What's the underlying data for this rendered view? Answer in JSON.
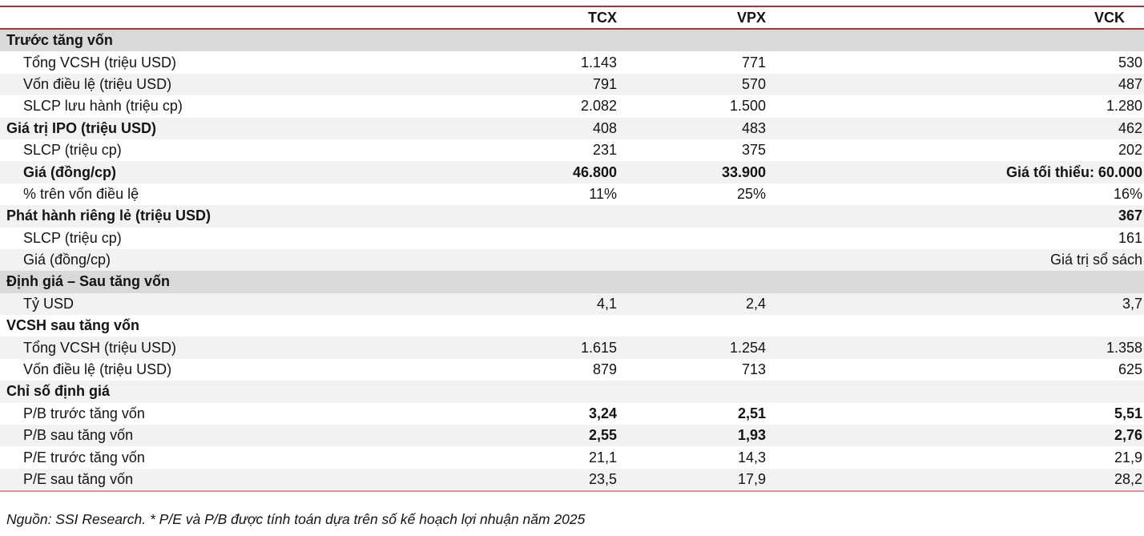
{
  "colors": {
    "rule_dark": "#9c3a38",
    "rule_light": "#d99694",
    "section_bg": "#d9d9d9",
    "stripe_bg": "#f2f2f2"
  },
  "table": {
    "columns": [
      "TCX",
      "VPX",
      "VCK"
    ],
    "rows": [
      {
        "label": "Trước tăng vốn",
        "bg": "section",
        "bold_label": true,
        "bold_values": false,
        "indent": false,
        "values": [
          "",
          "",
          ""
        ]
      },
      {
        "label": "Tổng VCSH (triệu USD)",
        "bg": "white",
        "bold_label": false,
        "bold_values": false,
        "indent": true,
        "values": [
          "1.143",
          "771",
          "530"
        ]
      },
      {
        "label": "Vốn điều lệ (triệu USD)",
        "bg": "stripe",
        "bold_label": false,
        "bold_values": false,
        "indent": true,
        "values": [
          "791",
          "570",
          "487"
        ]
      },
      {
        "label": "SLCP lưu hành (triệu cp)",
        "bg": "white",
        "bold_label": false,
        "bold_values": false,
        "indent": true,
        "values": [
          "2.082",
          "1.500",
          "1.280"
        ]
      },
      {
        "label": "Giá trị IPO (triệu USD)",
        "bg": "stripe",
        "bold_label": true,
        "bold_values": false,
        "indent": false,
        "values": [
          "408",
          "483",
          "462"
        ]
      },
      {
        "label": "SLCP (triệu cp)",
        "bg": "white",
        "bold_label": false,
        "bold_values": false,
        "indent": true,
        "values": [
          "231",
          "375",
          "202"
        ]
      },
      {
        "label": "Giá (đồng/cp)",
        "bg": "stripe",
        "bold_label": true,
        "bold_values": true,
        "indent": true,
        "values": [
          "46.800",
          "33.900",
          "Giá tối thiểu: 60.000"
        ]
      },
      {
        "label": "% trên vốn điều lệ",
        "bg": "white",
        "bold_label": false,
        "bold_values": false,
        "indent": true,
        "values": [
          "11%",
          "25%",
          "16%"
        ]
      },
      {
        "label": "Phát hành riêng lẻ (triệu USD)",
        "bg": "stripe",
        "bold_label": true,
        "bold_values": true,
        "indent": false,
        "values": [
          "",
          "",
          "367"
        ]
      },
      {
        "label": "SLCP (triệu cp)",
        "bg": "white",
        "bold_label": false,
        "bold_values": false,
        "indent": true,
        "values": [
          "",
          "",
          "161"
        ]
      },
      {
        "label": "Giá (đồng/cp)",
        "bg": "stripe",
        "bold_label": false,
        "bold_values": false,
        "indent": true,
        "values": [
          "",
          "",
          "Giá trị sổ sách"
        ]
      },
      {
        "label": "Định giá – Sau tăng vốn",
        "bg": "section",
        "bold_label": true,
        "bold_values": false,
        "indent": false,
        "values": [
          "",
          "",
          ""
        ]
      },
      {
        "label": "Tỷ USD",
        "bg": "stripe",
        "bold_label": false,
        "bold_values": false,
        "indent": true,
        "values": [
          "4,1",
          "2,4",
          "3,7"
        ]
      },
      {
        "label": "VCSH sau tăng vốn",
        "bg": "white",
        "bold_label": true,
        "bold_values": false,
        "indent": false,
        "values": [
          "",
          "",
          ""
        ]
      },
      {
        "label": "Tổng VCSH (triệu USD)",
        "bg": "stripe",
        "bold_label": false,
        "bold_values": false,
        "indent": true,
        "values": [
          "1.615",
          "1.254",
          "1.358"
        ]
      },
      {
        "label": "Vốn điều lệ (triệu USD)",
        "bg": "white",
        "bold_label": false,
        "bold_values": false,
        "indent": true,
        "values": [
          "879",
          "713",
          "625"
        ]
      },
      {
        "label": "Chỉ số định giá",
        "bg": "stripe",
        "bold_label": true,
        "bold_values": false,
        "indent": false,
        "values": [
          "",
          "",
          ""
        ]
      },
      {
        "label": "P/B trước tăng vốn",
        "bg": "white",
        "bold_label": false,
        "bold_values": true,
        "indent": true,
        "values": [
          "3,24",
          "2,51",
          "5,51"
        ]
      },
      {
        "label": "P/B sau tăng vốn",
        "bg": "stripe",
        "bold_label": false,
        "bold_values": true,
        "indent": true,
        "values": [
          "2,55",
          "1,93",
          "2,76"
        ]
      },
      {
        "label": "P/E trước tăng vốn",
        "bg": "white",
        "bold_label": false,
        "bold_values": false,
        "indent": true,
        "values": [
          "21,1",
          "14,3",
          "21,9"
        ]
      },
      {
        "label": "P/E sau tăng vốn",
        "bg": "stripe",
        "bold_label": false,
        "bold_values": false,
        "indent": true,
        "values": [
          "23,5",
          "17,9",
          "28,2"
        ]
      }
    ]
  },
  "footer": {
    "note": "Nguồn: SSI Research. * P/E và P/B được tính toán dựa trên số kế hoạch lợi nhuận năm 2025"
  }
}
